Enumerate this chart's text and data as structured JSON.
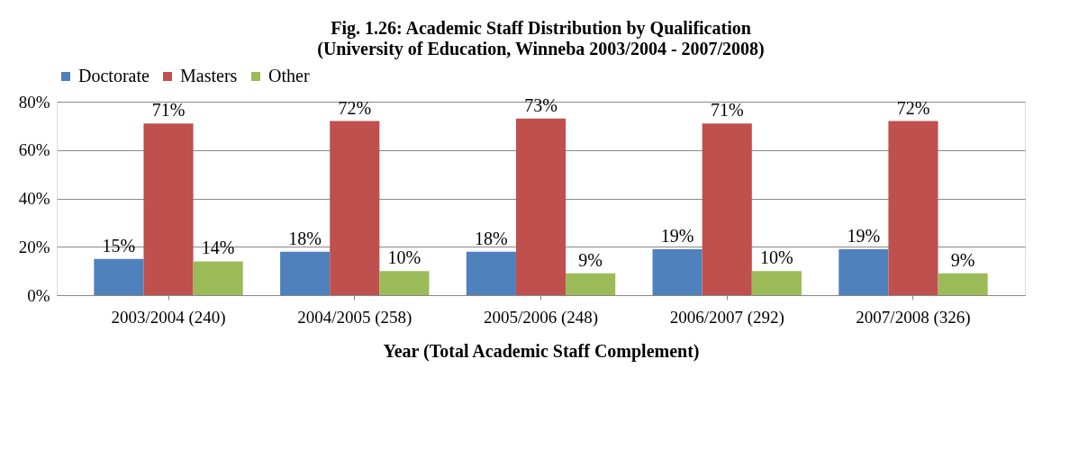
{
  "chart_data": {
    "type": "bar",
    "title": "Fig. 1.26: Academic Staff Distribution by Qualification",
    "subtitle": "(University of Education, Winneba 2003/2004 - 2007/2008)",
    "xlabel": "Year (Total Academic Staff Complement)",
    "categories": [
      "2003/2004 (240)",
      "2004/2005 (258)",
      "2005/2006 (248)",
      "2006/2007 (292)",
      "2007/2008 (326)"
    ],
    "series": [
      {
        "name": "Doctorate",
        "color": "#4f81bd",
        "values": [
          15,
          18,
          18,
          19,
          19
        ],
        "value_labels": [
          "15%",
          "18%",
          "18%",
          "19%",
          "19%"
        ]
      },
      {
        "name": "Masters",
        "color": "#c0504d",
        "values": [
          71,
          72,
          73,
          71,
          72
        ],
        "value_labels": [
          "71%",
          "72%",
          "73%",
          "71%",
          "72%"
        ]
      },
      {
        "name": "Other",
        "color": "#9bbb59",
        "values": [
          14,
          10,
          9,
          10,
          9
        ],
        "value_labels": [
          "14%",
          "10%",
          "9%",
          "10%",
          "9%"
        ]
      }
    ],
    "ylim": [
      0,
      80
    ],
    "yticks": [
      {
        "value": 0,
        "label": "0%"
      },
      {
        "value": 20,
        "label": "20%"
      },
      {
        "value": 40,
        "label": "40%"
      },
      {
        "value": 60,
        "label": "60%"
      },
      {
        "value": 80,
        "label": "80%"
      }
    ],
    "grid": "y",
    "legend": "top"
  }
}
